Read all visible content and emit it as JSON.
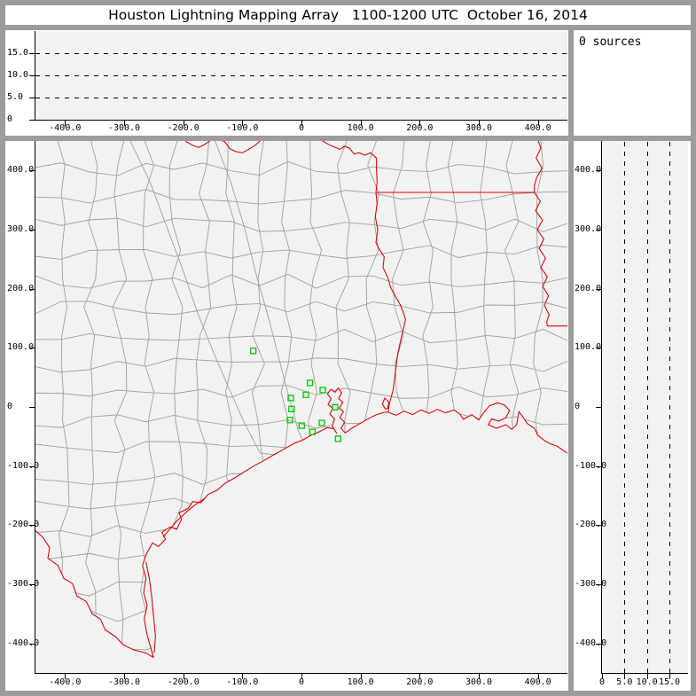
{
  "title": "Houston Lightning Mapping Array   1100-1200 UTC  October 16, 2014",
  "sources_label": "0 sources",
  "colors": {
    "frame_gray": "#9c9c9c",
    "panel_white": "#ffffff",
    "plot_bg": "#f2f2f2",
    "axis_black": "#000000",
    "county_gray": "#a0a0a0",
    "state_red": "#dd0000",
    "station_green": "#00cc00"
  },
  "axes": {
    "ew_km_ticks": [
      [
        "-400.0",
        -400
      ],
      [
        "-300.0",
        -300
      ],
      [
        "-200.0",
        -200
      ],
      [
        "-100.0",
        -100
      ],
      [
        "0",
        0
      ],
      [
        "100.0",
        100
      ],
      [
        "200.0",
        200
      ],
      [
        "300.0",
        300
      ],
      [
        "400.0",
        400
      ]
    ],
    "ns_km_ticks": [
      [
        "400.0",
        400
      ],
      [
        "300.0",
        300
      ],
      [
        "200.0",
        200
      ],
      [
        "100.0",
        100
      ],
      [
        "0",
        0
      ],
      [
        "-100.0",
        -100
      ],
      [
        "-200.0",
        -200
      ],
      [
        "-300.0",
        -300
      ],
      [
        "-400.0",
        -400
      ]
    ],
    "alt_km_ticks": [
      [
        "0",
        0
      ],
      [
        "5.0",
        5
      ],
      [
        "10.0",
        10
      ],
      [
        "15.0",
        15
      ]
    ],
    "alt_dash_km": [
      5,
      10,
      15
    ],
    "ew_range_km": [
      -450,
      450
    ],
    "ns_range_km": [
      -450,
      450
    ],
    "alt_range_km": [
      0,
      20
    ],
    "alt_right_range_km": [
      0,
      19
    ]
  },
  "chart_data": {
    "type": "scatter",
    "title": "Houston Lightning Mapping Array   1100-1200 UTC  October 16, 2014",
    "source_count": 0,
    "panels": [
      {
        "name": "altitude-vs-east-west",
        "x_range_km": [
          -450,
          450
        ],
        "y_range_km": [
          0,
          20
        ],
        "gridlines_km": [
          5,
          10,
          15
        ],
        "points": []
      },
      {
        "name": "plan-view-map",
        "x_range_km": [
          -450,
          450
        ],
        "y_range_km": [
          -450,
          450
        ],
        "points": []
      },
      {
        "name": "altitude-vs-north-south",
        "x_range_km": [
          0,
          19
        ],
        "y_range_km": [
          -450,
          450
        ],
        "gridlines_km": [
          5,
          10,
          15
        ],
        "points": []
      }
    ],
    "stations_km_east_north": [
      [
        -81.5,
        94.9
      ],
      [
        14.5,
        40.7
      ],
      [
        36,
        28.6
      ],
      [
        7.5,
        20.6
      ],
      [
        -18,
        15.1
      ],
      [
        -16.9,
        -3.5
      ],
      [
        57,
        -0.5
      ],
      [
        -19.5,
        -22.1
      ],
      [
        0.5,
        -31.6
      ],
      [
        34.5,
        -27.1
      ],
      [
        18.4,
        -42.2
      ],
      [
        62,
        -53.8
      ]
    ]
  },
  "map_geometry": {
    "rio_grande": [
      [
        -455,
        -205
      ],
      [
        -438,
        -220
      ],
      [
        -426,
        -238
      ],
      [
        -429,
        -256
      ],
      [
        -412,
        -268
      ],
      [
        -402,
        -290
      ],
      [
        -387,
        -299
      ],
      [
        -380,
        -320
      ],
      [
        -364,
        -329
      ],
      [
        -354,
        -350
      ],
      [
        -340,
        -359
      ],
      [
        -332,
        -377
      ],
      [
        -314,
        -389
      ],
      [
        -302,
        -402
      ],
      [
        -284,
        -411
      ],
      [
        -264,
        -416
      ],
      [
        -250,
        -424
      ]
    ],
    "coast": [
      [
        -250,
        -424
      ],
      [
        -256,
        -404
      ],
      [
        -262,
        -382
      ],
      [
        -266,
        -358
      ],
      [
        -261,
        -336
      ],
      [
        -267,
        -314
      ],
      [
        -263,
        -290
      ],
      [
        -269,
        -268
      ],
      [
        -262,
        -248
      ],
      [
        -252,
        -230
      ],
      [
        -242,
        -236
      ],
      [
        -230,
        -224
      ],
      [
        -236,
        -212
      ],
      [
        -222,
        -203
      ],
      [
        -211,
        -207
      ],
      [
        -203,
        -190
      ],
      [
        -207,
        -179
      ],
      [
        -192,
        -172
      ],
      [
        -184,
        -160
      ],
      [
        -170,
        -162
      ],
      [
        -158,
        -148
      ],
      [
        -143,
        -141
      ],
      [
        -129,
        -129
      ],
      [
        -113,
        -120
      ],
      [
        -97,
        -110
      ],
      [
        -81,
        -100
      ],
      [
        -64,
        -91
      ],
      [
        -47,
        -81
      ],
      [
        -29,
        -71
      ],
      [
        -11,
        -61
      ],
      [
        2,
        -56
      ],
      [
        16,
        -48
      ],
      [
        30,
        -42
      ],
      [
        44,
        -35
      ],
      [
        55,
        -37
      ],
      [
        60,
        -45
      ],
      [
        52,
        -32
      ],
      [
        56,
        -20
      ],
      [
        48,
        -12
      ],
      [
        53,
        -2
      ],
      [
        45,
        4
      ],
      [
        50,
        14
      ],
      [
        44,
        22
      ],
      [
        50,
        30
      ],
      [
        57,
        25
      ],
      [
        62,
        32
      ],
      [
        68,
        24
      ],
      [
        63,
        14
      ],
      [
        70,
        8
      ],
      [
        64,
        -2
      ],
      [
        71,
        -8
      ],
      [
        65,
        -18
      ],
      [
        73,
        -26
      ],
      [
        67,
        -36
      ],
      [
        74,
        -44
      ],
      [
        85,
        -36
      ],
      [
        99,
        -28
      ],
      [
        113,
        -20
      ],
      [
        127,
        -13
      ],
      [
        140,
        -9
      ],
      [
        147,
        -9
      ],
      [
        160,
        -14
      ],
      [
        174,
        -7
      ],
      [
        188,
        -13
      ],
      [
        202,
        -5
      ],
      [
        216,
        -11
      ],
      [
        230,
        -4
      ],
      [
        244,
        -10
      ],
      [
        258,
        -5
      ],
      [
        268,
        -12
      ],
      [
        274,
        -21
      ],
      [
        288,
        -13
      ],
      [
        300,
        -22
      ],
      [
        308,
        -10
      ],
      [
        318,
        2
      ],
      [
        332,
        7
      ],
      [
        344,
        3
      ],
      [
        352,
        -6
      ],
      [
        346,
        -18
      ],
      [
        334,
        -24
      ],
      [
        322,
        -20
      ],
      [
        316,
        -30
      ],
      [
        330,
        -36
      ],
      [
        346,
        -30
      ],
      [
        356,
        -38
      ],
      [
        364,
        -30
      ],
      [
        368,
        -8
      ],
      [
        374,
        -16
      ],
      [
        382,
        -28
      ],
      [
        394,
        -36
      ],
      [
        400,
        -48
      ],
      [
        410,
        -56
      ],
      [
        420,
        -62
      ],
      [
        432,
        -66
      ],
      [
        445,
        -75
      ],
      [
        458,
        -82
      ]
    ],
    "red_river": [
      [
        -205,
        458
      ],
      [
        -195,
        449
      ],
      [
        -185,
        443
      ],
      [
        -174,
        439
      ],
      [
        -164,
        444
      ],
      [
        -155,
        450
      ],
      [
        -147,
        458
      ],
      [
        -139,
        452
      ],
      [
        -130,
        449
      ],
      [
        -121,
        437
      ],
      [
        -111,
        432
      ],
      [
        -100,
        430
      ],
      [
        -89,
        436
      ],
      [
        -78,
        443
      ],
      [
        -68,
        452
      ],
      [
        -60,
        458
      ],
      [
        -20,
        462
      ],
      [
        25,
        458
      ],
      [
        34,
        451
      ],
      [
        44,
        445
      ],
      [
        55,
        440
      ],
      [
        65,
        436
      ],
      [
        73,
        441
      ],
      [
        81,
        438
      ],
      [
        89,
        428
      ],
      [
        98,
        430
      ],
      [
        107,
        426
      ],
      [
        117,
        430
      ],
      [
        127,
        421
      ]
    ],
    "tx_east_border": [
      [
        127,
        421
      ],
      [
        127,
        400
      ],
      [
        128,
        380
      ],
      [
        126,
        363
      ],
      [
        128,
        344
      ],
      [
        125,
        322
      ],
      [
        129,
        300
      ],
      [
        126,
        278
      ],
      [
        131,
        268
      ],
      [
        140,
        254
      ],
      [
        138,
        236
      ],
      [
        146,
        219
      ],
      [
        151,
        202
      ],
      [
        159,
        187
      ],
      [
        167,
        173
      ],
      [
        172,
        161
      ],
      [
        176,
        148
      ],
      [
        173,
        134
      ],
      [
        169,
        118
      ],
      [
        166,
        104
      ],
      [
        163,
        90
      ],
      [
        161,
        76
      ],
      [
        159,
        60
      ],
      [
        157,
        44
      ],
      [
        155,
        28
      ],
      [
        151,
        14
      ],
      [
        148,
        2
      ],
      [
        147,
        -9
      ]
    ],
    "ar_la_border": [
      [
        126,
        363
      ],
      [
        394,
        363
      ]
    ],
    "mississippi_river": [
      [
        399,
        455
      ],
      [
        405,
        438
      ],
      [
        397,
        421
      ],
      [
        407,
        404
      ],
      [
        398,
        388
      ],
      [
        394,
        375
      ],
      [
        394,
        363
      ],
      [
        404,
        348
      ],
      [
        396,
        332
      ],
      [
        408,
        316
      ],
      [
        399,
        300
      ],
      [
        410,
        284
      ],
      [
        402,
        268
      ],
      [
        413,
        252
      ],
      [
        405,
        236
      ],
      [
        416,
        220
      ],
      [
        408,
        204
      ],
      [
        418,
        188
      ],
      [
        411,
        172
      ],
      [
        419,
        156
      ],
      [
        415,
        144
      ],
      [
        416,
        137
      ]
    ],
    "la_ms_border": [
      [
        416,
        137
      ],
      [
        462,
        137
      ]
    ],
    "padre_island": [
      [
        -263,
        -262
      ],
      [
        -257,
        -292
      ],
      [
        -253,
        -324
      ],
      [
        -250,
        -356
      ],
      [
        -247,
        -388
      ],
      [
        -249,
        -416
      ]
    ],
    "matagorda_barrier": [
      [
        -234,
        -220
      ],
      [
        -210,
        -192
      ],
      [
        -186,
        -170
      ],
      [
        -163,
        -154
      ]
    ],
    "sabine_lake": [
      [
        142,
        -4
      ],
      [
        137,
        5
      ],
      [
        141,
        15
      ],
      [
        148,
        8
      ],
      [
        146,
        -2
      ],
      [
        142,
        -4
      ]
    ],
    "rivers": [
      [
        [
          -148,
          455
        ],
        [
          -120,
          382
        ],
        [
          -96,
          302
        ],
        [
          -76,
          222
        ],
        [
          -56,
          152
        ],
        [
          -38,
          82
        ],
        [
          -20,
          12
        ],
        [
          -6,
          -38
        ],
        [
          2,
          -56
        ]
      ],
      [
        [
          -292,
          455
        ],
        [
          -256,
          380
        ],
        [
          -226,
          300
        ],
        [
          -200,
          230
        ],
        [
          -176,
          160
        ],
        [
          -150,
          95
        ],
        [
          -122,
          30
        ],
        [
          -96,
          -28
        ],
        [
          -70,
          -78
        ],
        [
          -47,
          -81
        ]
      ]
    ]
  }
}
